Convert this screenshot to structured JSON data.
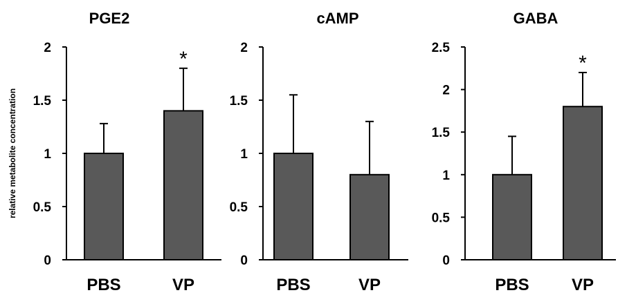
{
  "figure": {
    "ylabel": "relative metabolite concentration"
  },
  "chart_data": [
    {
      "type": "bar",
      "title": "PGE2",
      "categories": [
        "PBS",
        "VP"
      ],
      "values": [
        1.0,
        1.4
      ],
      "error": [
        0.28,
        0.4
      ],
      "annotations": [
        "",
        "*"
      ],
      "ylim": [
        0,
        2
      ],
      "yticks": [
        0,
        0.5,
        1,
        1.5,
        2
      ],
      "ytick_labels": [
        "0",
        "0.5",
        "1",
        "1.5",
        "2"
      ],
      "ylabel": "relative metabolite concentration",
      "grid": false,
      "bar_color": "#595959"
    },
    {
      "type": "bar",
      "title": "cAMP",
      "categories": [
        "PBS",
        "VP"
      ],
      "values": [
        1.0,
        0.8
      ],
      "error": [
        0.55,
        0.5
      ],
      "annotations": [
        "",
        ""
      ],
      "ylim": [
        0,
        2
      ],
      "yticks": [
        0,
        0.5,
        1,
        1.5,
        2
      ],
      "ytick_labels": [
        "0",
        "0.5",
        "1",
        "1.5",
        "2"
      ],
      "grid": false,
      "bar_color": "#595959"
    },
    {
      "type": "bar",
      "title": "GABA",
      "categories": [
        "PBS",
        "VP"
      ],
      "values": [
        1.0,
        1.8
      ],
      "error": [
        0.45,
        0.4
      ],
      "annotations": [
        "",
        "*"
      ],
      "ylim": [
        0,
        2.5
      ],
      "yticks": [
        0,
        0.5,
        1,
        1.5,
        2,
        2.5
      ],
      "ytick_labels": [
        "0",
        "0.5",
        "1",
        "1.5",
        "2",
        "2.5"
      ],
      "grid": false,
      "bar_color": "#595959"
    }
  ]
}
